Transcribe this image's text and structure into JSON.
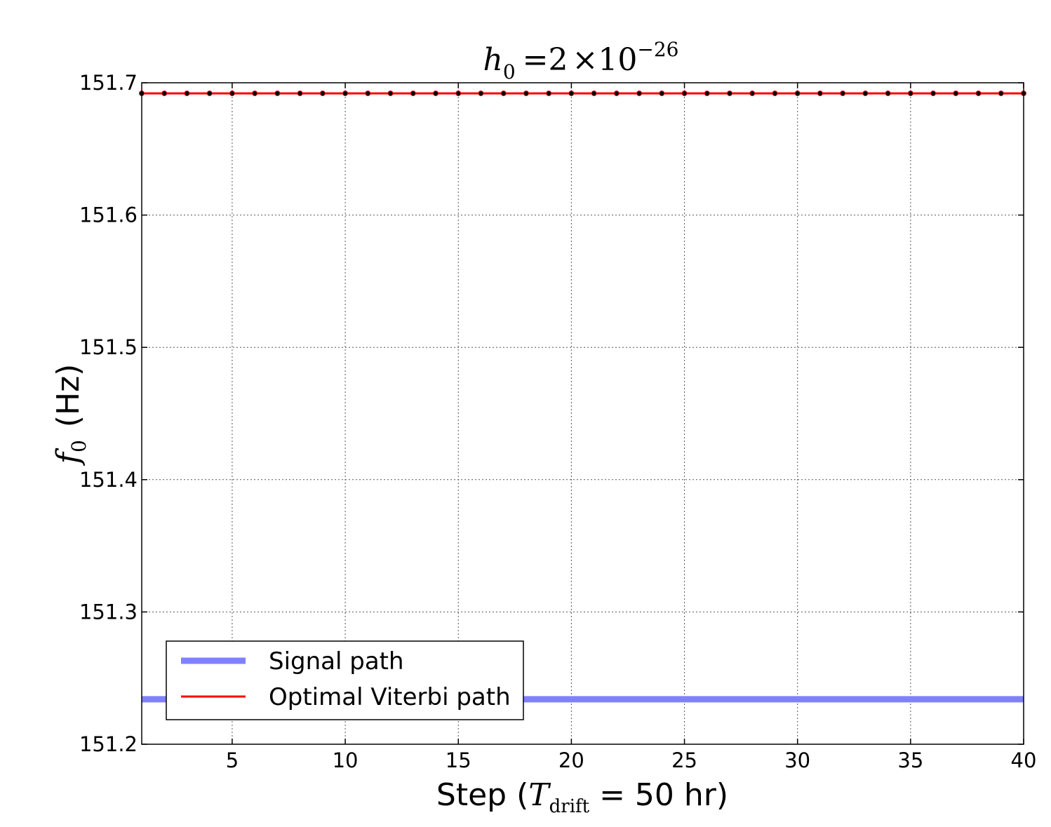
{
  "chart_data": {
    "type": "line",
    "title": {
      "lhs_base": "h",
      "lhs_sub": "0",
      "eq": "=",
      "coef": "2",
      "times": "×",
      "base": "10",
      "exponent": "−26"
    },
    "xlabel": {
      "prefix": "Step (",
      "var": "T",
      "var_sub": "drift",
      "suffix": " = 50 hr)"
    },
    "ylabel": {
      "var": "f",
      "var_sub": "0",
      "suffix": "(Hz)"
    },
    "xlim": [
      1,
      40
    ],
    "ylim": [
      151.2,
      151.7
    ],
    "x_ticks": [
      5,
      10,
      15,
      20,
      25,
      30,
      35,
      40
    ],
    "y_ticks": [
      "151.2",
      "151.3",
      "151.4",
      "151.5",
      "151.6",
      "151.7"
    ],
    "grid": true,
    "legend_position": "lower-left",
    "series": [
      {
        "name": "Signal path",
        "color": "#8080ff",
        "style": "thick-line",
        "x": [
          1,
          40
        ],
        "y": [
          151.234,
          151.234
        ]
      },
      {
        "name": "Optimal Viterbi path",
        "color": "#ff0000",
        "style": "line-with-markers",
        "marker_color": "#000000",
        "x": [
          1,
          2,
          3,
          4,
          5,
          6,
          7,
          8,
          9,
          10,
          11,
          12,
          13,
          14,
          15,
          16,
          17,
          18,
          19,
          20,
          21,
          22,
          23,
          24,
          25,
          26,
          27,
          28,
          29,
          30,
          31,
          32,
          33,
          34,
          35,
          36,
          37,
          38,
          39,
          40
        ],
        "y": [
          151.692,
          151.692,
          151.692,
          151.692,
          151.692,
          151.692,
          151.692,
          151.692,
          151.692,
          151.692,
          151.692,
          151.692,
          151.692,
          151.692,
          151.692,
          151.692,
          151.692,
          151.692,
          151.692,
          151.692,
          151.692,
          151.692,
          151.692,
          151.692,
          151.692,
          151.692,
          151.692,
          151.692,
          151.692,
          151.692,
          151.692,
          151.692,
          151.692,
          151.692,
          151.692,
          151.692,
          151.692,
          151.692,
          151.692,
          151.692
        ]
      }
    ]
  }
}
